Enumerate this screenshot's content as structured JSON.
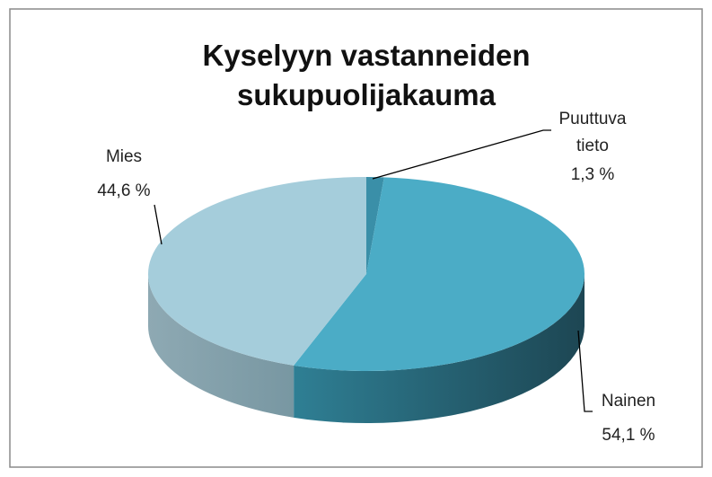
{
  "chart_data": {
    "type": "pie3d",
    "title": "Kyselyyn vastanneiden sukupuolijakauma",
    "categories": [
      "Puuttuva tieto",
      "Nainen",
      "Mies"
    ],
    "values": [
      1.3,
      54.1,
      44.6
    ],
    "value_labels": [
      "1,3 %",
      "54,1 %",
      "44,6 %"
    ],
    "colors": [
      "#3a8fa8",
      "#4bacc6",
      "#a5cddb"
    ]
  }
}
